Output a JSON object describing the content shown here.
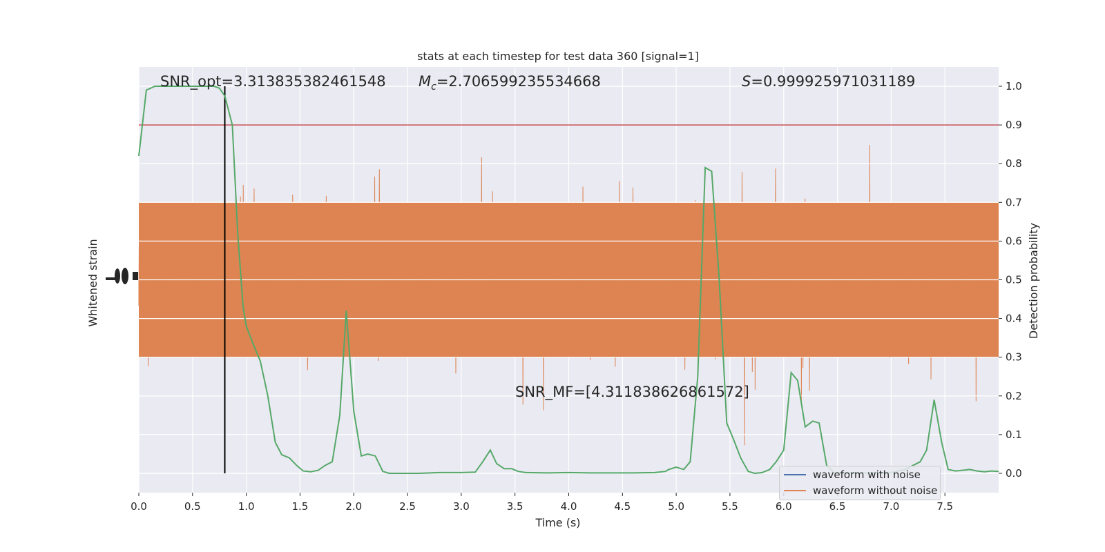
{
  "chart_data": {
    "type": "line",
    "title": "stats at each timestep for test data 360 [signal=1]",
    "xlabel": "Time (s)",
    "ylabel_left": "Whitened strain",
    "ylabel_right": "Detection probability",
    "xlim": [
      0,
      8
    ],
    "ylim_right": [
      -0.05,
      1.05
    ],
    "xticks": [
      0.0,
      0.5,
      1.0,
      1.5,
      2.0,
      2.5,
      3.0,
      3.5,
      4.0,
      4.5,
      5.0,
      5.5,
      6.0,
      6.5,
      7.0,
      7.5
    ],
    "xtick_labels": [
      "0.0",
      "0.5",
      "1.0",
      "1.5",
      "2.0",
      "2.5",
      "3.0",
      "3.5",
      "4.0",
      "4.5",
      "5.0",
      "5.5",
      "6.0",
      "6.5",
      "7.0",
      "7.5"
    ],
    "yticks_right": [
      0.0,
      0.1,
      0.2,
      0.3,
      0.4,
      0.5,
      0.6,
      0.7,
      0.8,
      0.9,
      1.0
    ],
    "ytick_labels_right": [
      "0.0",
      "0.1",
      "0.2",
      "0.3",
      "0.4",
      "0.5",
      "0.6",
      "0.7",
      "0.8",
      "0.9",
      "1.0"
    ],
    "grid": true,
    "legend_position": "bottom-right",
    "threshold": 0.9,
    "event_time": 0.8,
    "colors": {
      "background": "#eaeaf2",
      "waveform_with_noise": "#4c72b0",
      "waveform_without_noise": "#dd8452",
      "probability": "#55a868",
      "threshold": "#c44e52",
      "event_line": "#000000",
      "grid": "#ffffff"
    },
    "series": [
      {
        "name": "waveform with noise",
        "role": "legend-only"
      },
      {
        "name": "waveform without noise",
        "role": "strain"
      },
      {
        "role": "probability",
        "x": [
          0.0,
          0.07,
          0.15,
          0.3,
          0.5,
          0.7,
          0.75,
          0.8,
          0.87,
          0.92,
          0.97,
          1.0,
          1.07,
          1.13,
          1.2,
          1.27,
          1.33,
          1.4,
          1.47,
          1.53,
          1.6,
          1.67,
          1.73,
          1.8,
          1.87,
          1.93,
          2.0,
          2.07,
          2.13,
          2.2,
          2.27,
          2.33,
          2.4,
          2.6,
          2.8,
          3.0,
          3.13,
          3.2,
          3.27,
          3.33,
          3.4,
          3.47,
          3.53,
          3.6,
          3.8,
          4.0,
          4.2,
          4.4,
          4.6,
          4.8,
          4.9,
          4.93,
          5.0,
          5.07,
          5.13,
          5.2,
          5.27,
          5.33,
          5.4,
          5.47,
          5.53,
          5.6,
          5.67,
          5.73,
          5.8,
          5.87,
          5.93,
          6.0,
          6.07,
          6.13,
          6.2,
          6.27,
          6.33,
          6.4,
          6.47,
          6.53,
          6.6,
          6.8,
          7.0,
          7.13,
          7.2,
          7.27,
          7.33,
          7.4,
          7.47,
          7.53,
          7.6,
          7.67,
          7.73,
          7.8,
          7.87,
          7.93,
          8.0
        ],
        "y": [
          0.82,
          0.99,
          1.0,
          1.0,
          1.0,
          1.0,
          0.995,
          0.975,
          0.9,
          0.62,
          0.43,
          0.38,
          0.33,
          0.29,
          0.2,
          0.08,
          0.048,
          0.04,
          0.02,
          0.006,
          0.004,
          0.008,
          0.02,
          0.03,
          0.15,
          0.42,
          0.16,
          0.045,
          0.05,
          0.045,
          0.005,
          0.0,
          0.0,
          0.0,
          0.002,
          0.002,
          0.003,
          0.03,
          0.06,
          0.025,
          0.012,
          0.012,
          0.005,
          0.002,
          0.001,
          0.002,
          0.001,
          0.001,
          0.001,
          0.002,
          0.005,
          0.01,
          0.016,
          0.01,
          0.03,
          0.25,
          0.79,
          0.78,
          0.5,
          0.13,
          0.09,
          0.04,
          0.005,
          0.0,
          0.002,
          0.01,
          0.03,
          0.06,
          0.26,
          0.24,
          0.12,
          0.135,
          0.13,
          0.02,
          0.002,
          0.001,
          0.001,
          0.001,
          0.002,
          0.01,
          0.02,
          0.03,
          0.06,
          0.19,
          0.08,
          0.01,
          0.006,
          0.008,
          0.01,
          0.006,
          0.004,
          0.006,
          0.005
        ]
      }
    ],
    "annotations": {
      "snr_opt": "SNR_opt=3.313835382461548",
      "mc_symbol": "M",
      "mc_sub": "c",
      "mc_value": "=2.706599235534668",
      "s_symbol": "S",
      "s_value": "=0.999925971031189",
      "snr_mf": "SNR_MF=[4.311838626861572]"
    }
  }
}
